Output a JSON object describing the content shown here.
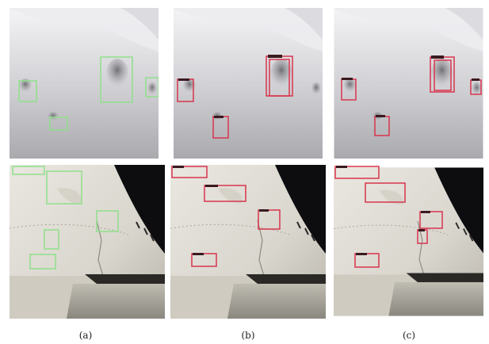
{
  "captions": [
    "(a)",
    "(b)",
    "(c)"
  ],
  "colors": {
    "ground_truth_box": "#8fe08a",
    "detection_box": "#d8344d",
    "background": "#ffffff"
  },
  "panels": [
    {
      "row": "top",
      "column": "a",
      "content": "depth-map",
      "boxes": "ground-truth"
    },
    {
      "row": "top",
      "column": "b",
      "content": "depth-map",
      "boxes": "detection"
    },
    {
      "row": "top",
      "column": "c",
      "content": "depth-map",
      "boxes": "detection"
    },
    {
      "row": "bottom",
      "column": "a",
      "content": "aircraft-wing-photo",
      "boxes": "ground-truth"
    },
    {
      "row": "bottom",
      "column": "b",
      "content": "aircraft-wing-photo",
      "boxes": "detection"
    },
    {
      "row": "bottom",
      "column": "c",
      "content": "aircraft-wing-photo",
      "boxes": "detection"
    }
  ]
}
